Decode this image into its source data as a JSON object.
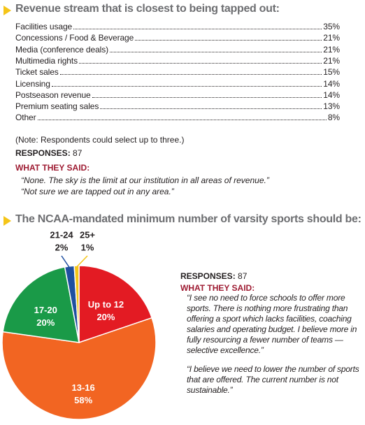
{
  "survey": {
    "title": "Revenue stream that is closest to being tapped out:",
    "items": [
      {
        "label": "Facilities usage",
        "value": "35%"
      },
      {
        "label": "Concessions / Food & Beverage",
        "value": "21%"
      },
      {
        "label": "Media (conference deals)",
        "value": "21%"
      },
      {
        "label": "Multimedia rights",
        "value": "21%"
      },
      {
        "label": "Ticket sales",
        "value": "15%"
      },
      {
        "label": "Licensing",
        "value": "14%"
      },
      {
        "label": "Postseason revenue",
        "value": "14%"
      },
      {
        "label": "Premium seating sales",
        "value": "13%"
      },
      {
        "label": "Other",
        "value": "8%"
      }
    ],
    "note": "(Note: Respondents could select up to three.)",
    "responses_label": "RESPONSES:",
    "responses": "87",
    "said_label": "WHAT THEY SAID:",
    "quotes": [
      "“None. The sky is the limit at our institution in all areas of revenue.”",
      "“Not sure we are tapped out in any area.”"
    ]
  },
  "chart_data": {
    "type": "pie",
    "title": "The NCAA-mandated minimum number of varsity sports should be:",
    "categories": [
      "Up to 12",
      "13-16",
      "17-20",
      "21-24",
      "25+"
    ],
    "values": [
      20,
      58,
      20,
      2,
      1
    ],
    "value_labels": [
      "20%",
      "58%",
      "20%",
      "2%",
      "1%"
    ],
    "colors": [
      "#e31b23",
      "#f26522",
      "#1a9a48",
      "#1f4fa0",
      "#f5c518"
    ]
  },
  "comments": {
    "responses_label": "RESPONSES:",
    "responses": "87",
    "said_label": "WHAT THEY SAID:",
    "quotes": [
      "“I see no need to force schools to offer more sports. There is nothing more frustrating than offering a sport which lacks facilities, coaching salaries and operating budget. I believe more in fully resourcing a fewer number of teams — selective excellence.”",
      "“I believe we need to lower the number of sports that are offered. The current number is not sustainable.”"
    ]
  }
}
